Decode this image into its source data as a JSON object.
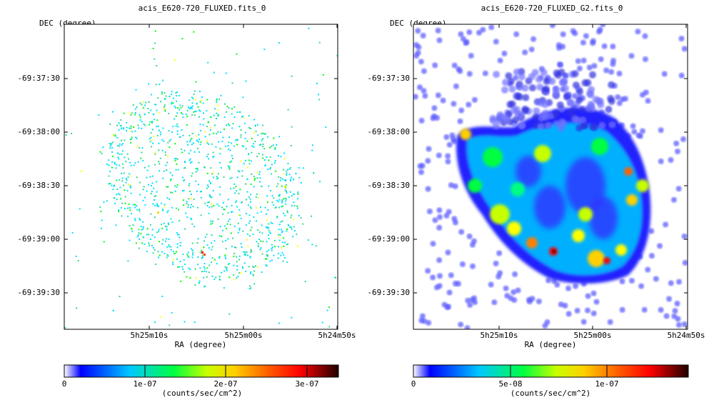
{
  "panels": [
    {
      "title": "acis_E620-720_FLUXED.fits_0",
      "ylabel": "DEC (degree)",
      "xlabel": "RA (degree)",
      "ytick_labels": [
        "-69:37:30",
        "-69:38:00",
        "-69:38:30",
        "-69:39:00",
        "-69:39:30"
      ],
      "xtick_labels": [
        "5h25m10s",
        "5h25m00s",
        "5h24m50s"
      ],
      "colorbar": {
        "tick_labels": [
          "0",
          "1e-07",
          "2e-07",
          "3e-07"
        ],
        "label": "(counts/sec/cm^2)",
        "max": 3.4e-07
      }
    },
    {
      "title": "acis_E620-720_FLUXED_G2.fits_0",
      "ylabel": "DEC (degree)",
      "xlabel": "RA (degree)",
      "ytick_labels": [
        "-69:37:30",
        "-69:38:00",
        "-69:38:30",
        "-69:39:00",
        "-69:39:30"
      ],
      "xtick_labels": [
        "5h25m10s",
        "5h25m00s",
        "5h24m50s"
      ],
      "colorbar": {
        "tick_labels": [
          "0",
          "5e-08",
          "1e-07"
        ],
        "label": "(counts/sec/cm^2)",
        "max": 1.45e-07
      }
    }
  ],
  "chart_data": [
    {
      "type": "heatmap",
      "title": "acis_E620-720_FLUXED.fits_0",
      "xlabel": "RA (degree)",
      "ylabel": "DEC (degree)",
      "x_ticks": [
        "5h25m10s",
        "5h25m00s",
        "5h24m50s"
      ],
      "y_ticks": [
        "-69:37:30",
        "-69:38:00",
        "-69:38:30",
        "-69:39:00",
        "-69:39:30"
      ],
      "colorbar_label": "(counts/sec/cm^2)",
      "colorbar_ticks": [
        0,
        1e-07,
        2e-07,
        3e-07
      ],
      "colorbar_range": [
        0,
        3.4e-07
      ],
      "colormap": [
        "#ffffff",
        "#0000ff",
        "#00dfff",
        "#00ff00",
        "#ffff00",
        "#ff8000",
        "#ff0000",
        "#000000"
      ],
      "description_style": "sparse unsmoothed counts image of elliptical supernova remnant shell"
    },
    {
      "type": "heatmap",
      "title": "acis_E620-720_FLUXED_G2.fits_0",
      "xlabel": "RA (degree)",
      "ylabel": "DEC (degree)",
      "x_ticks": [
        "5h25m10s",
        "5h25m00s",
        "5h24m50s"
      ],
      "y_ticks": [
        "-69:37:30",
        "-69:38:00",
        "-69:38:30",
        "-69:39:00",
        "-69:39:30"
      ],
      "colorbar_label": "(counts/sec/cm^2)",
      "colorbar_ticks": [
        0,
        5e-08,
        1e-07
      ],
      "colorbar_range": [
        0,
        1.45e-07
      ],
      "colormap": [
        "#ffffff",
        "#0000ff",
        "#00dfff",
        "#00ff00",
        "#ffff00",
        "#ff8000",
        "#ff0000",
        "#000000"
      ],
      "description_style": "gaussian smoothed image of elliptical supernova remnant shell"
    }
  ]
}
